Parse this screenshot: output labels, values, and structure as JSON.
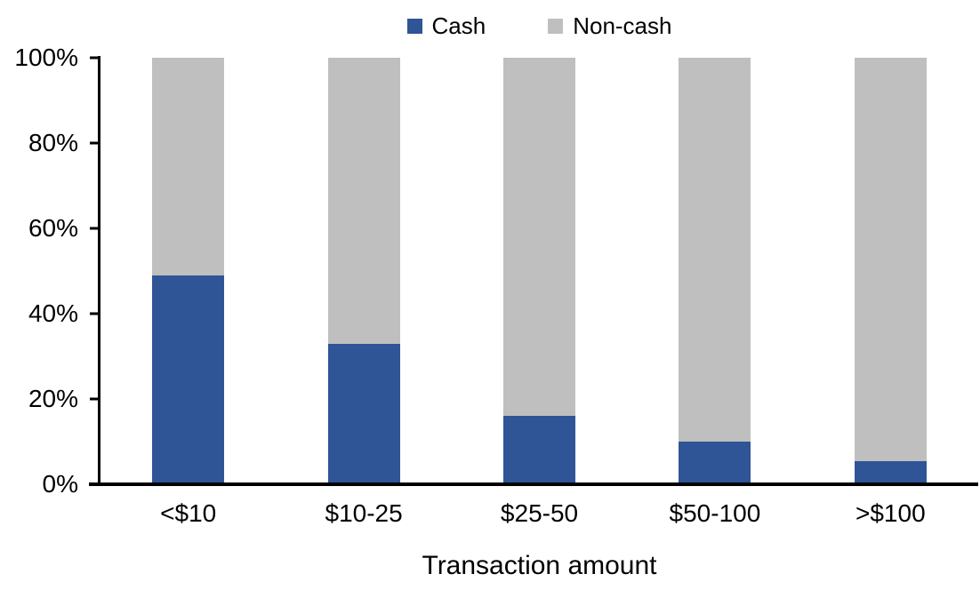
{
  "chart_data": {
    "type": "bar",
    "subtype": "stacked-100-percent",
    "title": "",
    "xlabel": "Transaction amount",
    "ylabel": "",
    "categories": [
      "<$10",
      "$10-25",
      "$25-50",
      "$50-100",
      ">$100"
    ],
    "series": [
      {
        "name": "Cash",
        "color": "#2F5597",
        "values": [
          49,
          33,
          16,
          10,
          5.5
        ]
      },
      {
        "name": "Non-cash",
        "color": "#BFBFBF",
        "values": [
          51,
          67,
          84,
          90,
          94.5
        ]
      }
    ],
    "ylim": [
      0,
      100
    ],
    "yticks": [
      0,
      20,
      40,
      60,
      80,
      100
    ],
    "ytick_labels": [
      "0%",
      "20%",
      "40%",
      "60%",
      "80%",
      "100%"
    ],
    "legend_position": "top-center",
    "grid": false,
    "axis_color": "#000000",
    "background_color": "#FFFFFF"
  }
}
